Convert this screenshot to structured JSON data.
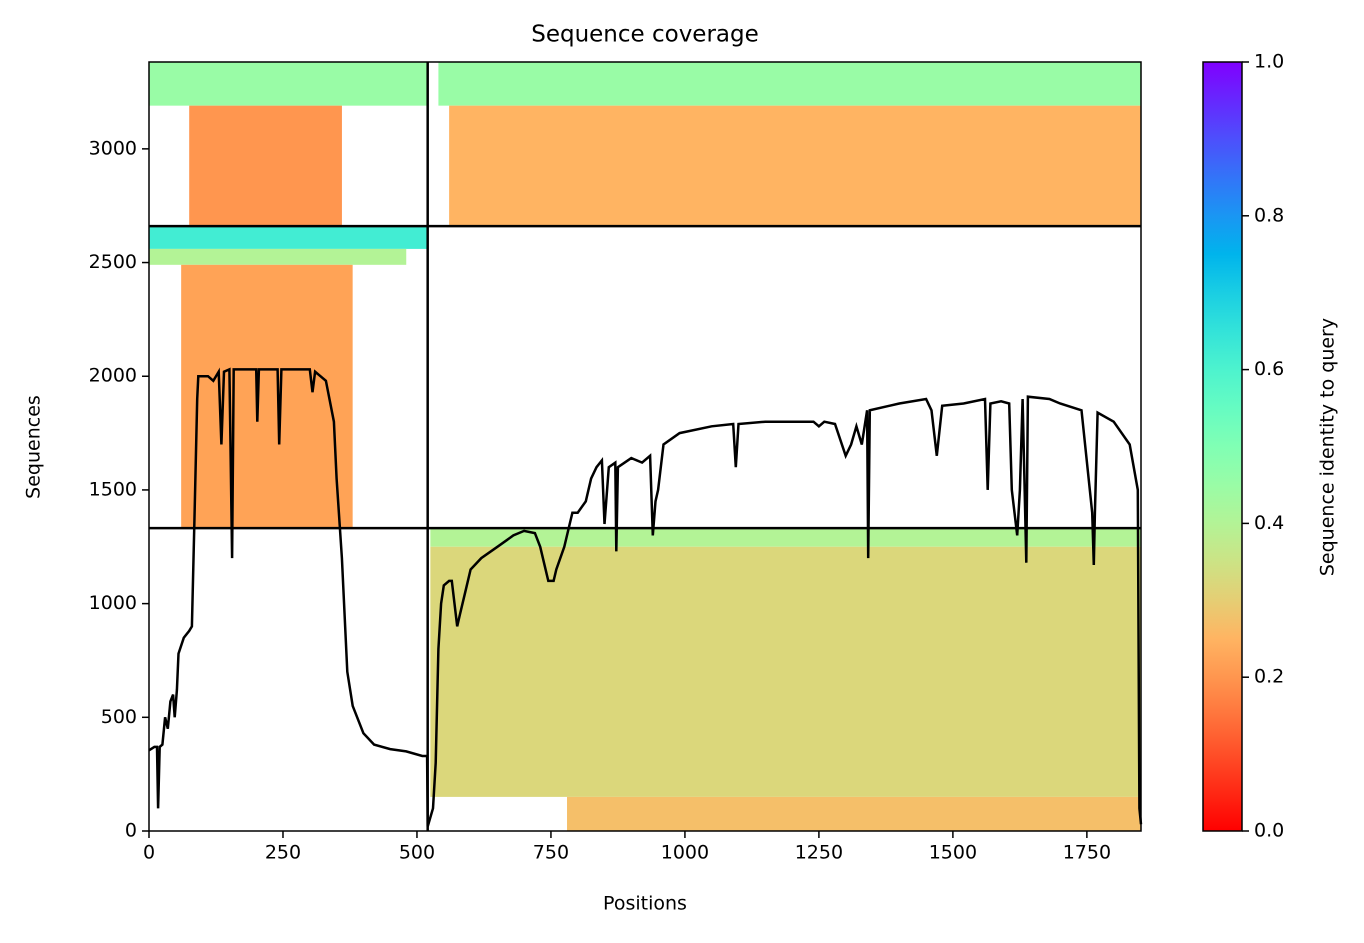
{
  "chart_data": {
    "type": "coverage",
    "title": "Sequence coverage",
    "x_label": "Positions",
    "y_label": "Sequences",
    "xlim": [
      0,
      1851
    ],
    "ylim": [
      0,
      3382
    ],
    "xticks": [
      0,
      250,
      500,
      750,
      1000,
      1250,
      1500,
      1750
    ],
    "yticks": [
      0,
      500,
      1000,
      1500,
      2000,
      2500,
      3000
    ],
    "boundaries": {
      "x": [
        520
      ],
      "y": [
        1332,
        2660
      ]
    },
    "colormap": "rainbow_r",
    "colorbar": {
      "label": "Sequence identity to query",
      "lim": [
        0,
        1
      ],
      "ticks": [
        {
          "value": 0,
          "label": "0.0"
        },
        0.2,
        0.4,
        0.6,
        0.8,
        {
          "value": 1,
          "label": "1.0"
        }
      ]
    },
    "blocks": [
      {
        "x0": 0,
        "x1": 520,
        "y0": 3190,
        "y1": 3382,
        "identity": 0.45
      },
      {
        "x0": 75,
        "x1": 360,
        "y0": 2660,
        "y1": 3190,
        "identity": 0.2
      },
      {
        "x0": 0,
        "x1": 520,
        "y0": 2560,
        "y1": 2660,
        "identity": 0.62
      },
      {
        "x0": 0,
        "x1": 480,
        "y0": 2490,
        "y1": 2560,
        "identity": 0.4
      },
      {
        "x0": 60,
        "x1": 380,
        "y0": 1332,
        "y1": 2490,
        "identity": 0.22
      },
      {
        "x0": 540,
        "x1": 1851,
        "y0": 3190,
        "y1": 3382,
        "identity": 0.45
      },
      {
        "x0": 560,
        "x1": 1851,
        "y0": 2660,
        "y1": 3190,
        "identity": 0.25
      },
      {
        "x0": 525,
        "x1": 1851,
        "y0": 1250,
        "y1": 1332,
        "identity": 0.4
      },
      {
        "x0": 525,
        "x1": 1851,
        "y0": 150,
        "y1": 1250,
        "identity": 0.32
      },
      {
        "x0": 780,
        "x1": 1851,
        "y0": 0,
        "y1": 150,
        "identity": 0.27
      }
    ],
    "series": [
      {
        "color": "#000000",
        "x": [
          0,
          10,
          15,
          17,
          20,
          25,
          30,
          35,
          40,
          45,
          48,
          52,
          55,
          65,
          75,
          80,
          85,
          90,
          92,
          110,
          120,
          125,
          130,
          135,
          140,
          150,
          155,
          158,
          200,
          202,
          205,
          240,
          243,
          247,
          290,
          300,
          305,
          310,
          330,
          345,
          350,
          360,
          370,
          380,
          400,
          420,
          450,
          480,
          510,
          519,
          520,
          530,
          535,
          540,
          545,
          550,
          560,
          565,
          570,
          575,
          580,
          590,
          600,
          620,
          650,
          680,
          700,
          720,
          730,
          745,
          755,
          760,
          775,
          785,
          790,
          800,
          815,
          825,
          835,
          845,
          850,
          858,
          870,
          872,
          875,
          900,
          920,
          935,
          940,
          945,
          950,
          960,
          990,
          1050,
          1090,
          1095,
          1100,
          1150,
          1200,
          1240,
          1250,
          1260,
          1280,
          1300,
          1310,
          1320,
          1330,
          1340,
          1342,
          1345,
          1400,
          1450,
          1460,
          1470,
          1480,
          1520,
          1560,
          1565,
          1570,
          1590,
          1605,
          1610,
          1620,
          1625,
          1630,
          1637,
          1640,
          1680,
          1700,
          1740,
          1760,
          1763,
          1765,
          1770,
          1800,
          1830,
          1845,
          1848,
          1851
        ],
        "values": [
          355,
          370,
          370,
          100,
          370,
          380,
          500,
          450,
          570,
          600,
          500,
          620,
          780,
          850,
          880,
          900,
          1400,
          1900,
          2000,
          2000,
          1980,
          2000,
          2020,
          1700,
          2020,
          2030,
          1200,
          2030,
          2030,
          1800,
          2030,
          2030,
          1700,
          2030,
          2030,
          2030,
          1930,
          2020,
          1980,
          1800,
          1550,
          1200,
          700,
          550,
          430,
          380,
          360,
          350,
          330,
          330,
          20,
          100,
          300,
          800,
          1000,
          1080,
          1100,
          1100,
          1000,
          900,
          950,
          1050,
          1150,
          1200,
          1250,
          1300,
          1320,
          1310,
          1250,
          1100,
          1100,
          1150,
          1250,
          1350,
          1400,
          1400,
          1450,
          1550,
          1600,
          1630,
          1350,
          1600,
          1620,
          1230,
          1600,
          1640,
          1620,
          1650,
          1300,
          1450,
          1500,
          1700,
          1750,
          1780,
          1790,
          1600,
          1790,
          1800,
          1800,
          1800,
          1780,
          1800,
          1790,
          1650,
          1700,
          1780,
          1700,
          1850,
          1200,
          1850,
          1880,
          1900,
          1850,
          1650,
          1870,
          1880,
          1900,
          1500,
          1880,
          1890,
          1880,
          1500,
          1300,
          1500,
          1900,
          1180,
          1910,
          1900,
          1880,
          1850,
          1400,
          1170,
          1400,
          1840,
          1800,
          1700,
          1500,
          100,
          30
        ]
      }
    ]
  }
}
